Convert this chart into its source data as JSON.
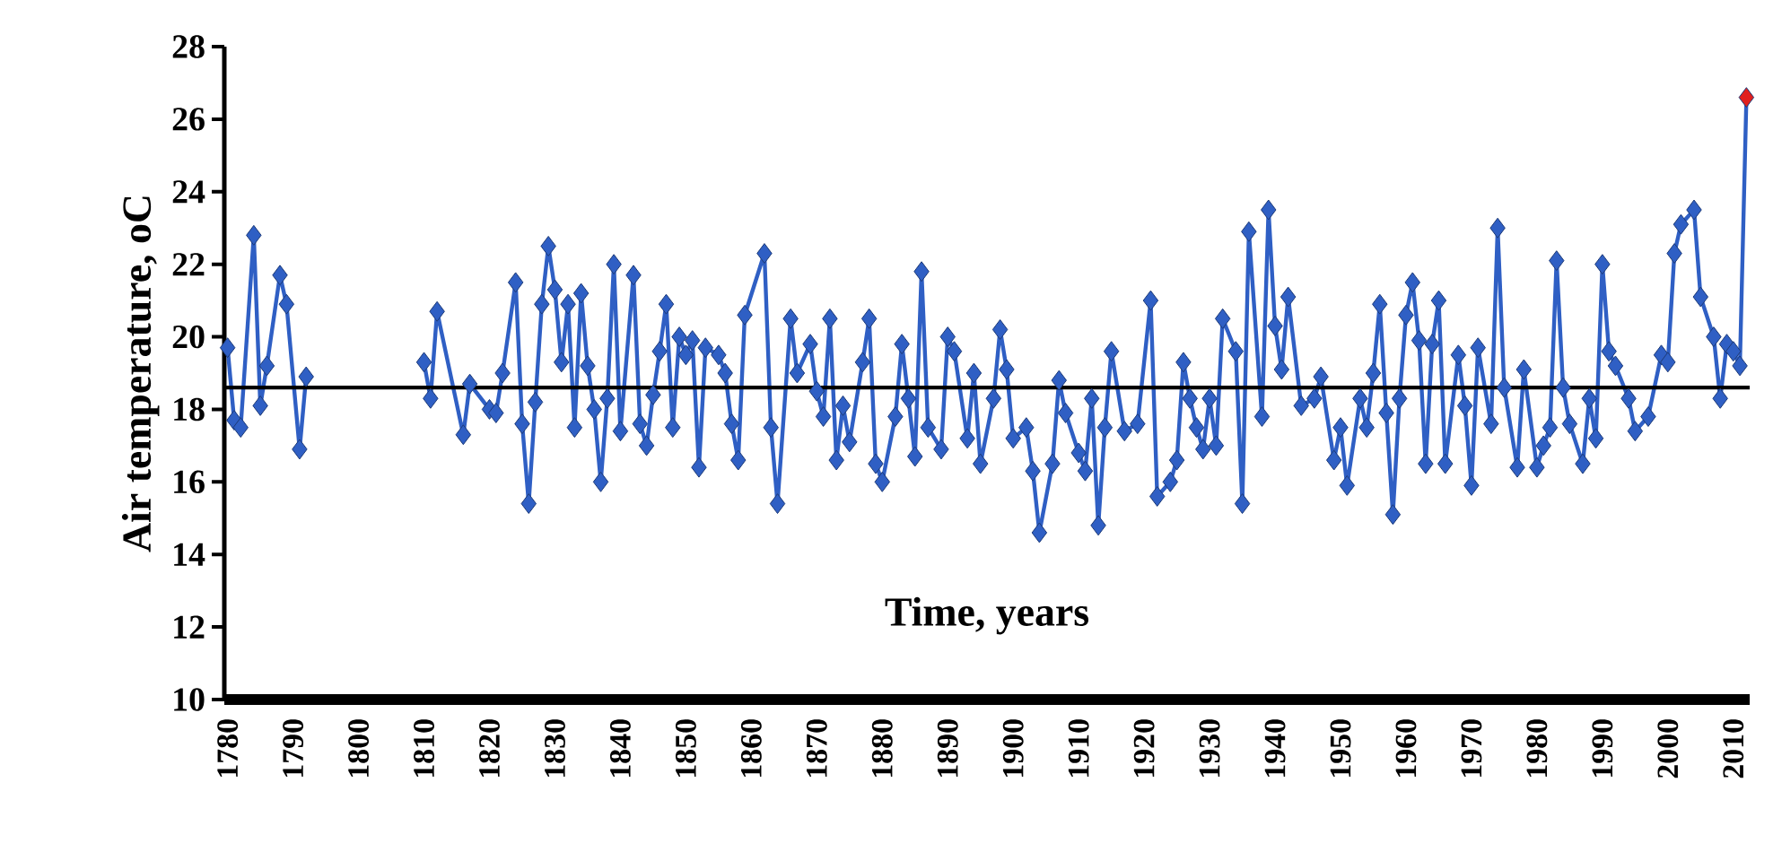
{
  "chart_data": {
    "type": "line",
    "xlabel": "Time, years",
    "ylabel": "Air temperature, oC",
    "xlim": [
      1779.5,
      2012.5
    ],
    "ylim": [
      10,
      28
    ],
    "xticks": [
      1780,
      1790,
      1800,
      1810,
      1820,
      1830,
      1840,
      1850,
      1860,
      1870,
      1880,
      1890,
      1900,
      1910,
      1920,
      1930,
      1940,
      1950,
      1960,
      1970,
      1980,
      1990,
      2000,
      2010
    ],
    "yticks": [
      10,
      12,
      14,
      16,
      18,
      20,
      22,
      24,
      26,
      28
    ],
    "marker": "diamond",
    "line_style": "solid",
    "ref_lines": [
      {
        "axis": "y",
        "value": 18.6,
        "color": "#000000"
      }
    ],
    "series": [
      {
        "color": "#2f5fc4",
        "colors": [
          "#2f5fc4",
          "#2f5fc4",
          "#2f5fc4",
          "#2f5fc4",
          "#2f5fc4",
          "#2f5fc4",
          "#2f5fc4",
          "#2f5fc4",
          "#2f5fc4",
          "#2f5fc4",
          "#2f5fc4",
          "#2f5fc4",
          "#2f5fc4",
          "#2f5fc4",
          "#2f5fc4",
          "#2f5fc4",
          "#2f5fc4",
          "#2f5fc4",
          "#2f5fc4",
          "#2f5fc4",
          "#2f5fc4",
          "#2f5fc4",
          "#2f5fc4",
          "#2f5fc4",
          "#2f5fc4",
          "#2f5fc4",
          "#2f5fc4",
          "#2f5fc4",
          "#2f5fc4",
          "#2f5fc4",
          "#2f5fc4",
          "#2f5fc4",
          "#2f5fc4",
          "#2f5fc4",
          "#2f5fc4",
          "#2f5fc4",
          "#2f5fc4",
          "#2f5fc4",
          "#2f5fc4",
          "#2f5fc4",
          "#2f5fc4",
          "#2f5fc4",
          "#2f5fc4",
          "#2f5fc4",
          "#2f5fc4",
          "#2f5fc4",
          "#2f5fc4",
          "#2f5fc4",
          "#2f5fc4",
          "#2f5fc4",
          "#2f5fc4",
          "#2f5fc4",
          "#2f5fc4",
          "#2f5fc4",
          "#2f5fc4",
          "#2f5fc4",
          "#2f5fc4",
          "#2f5fc4",
          "#2f5fc4",
          "#2f5fc4",
          "#2f5fc4",
          "#2f5fc4",
          "#2f5fc4",
          "#2f5fc4",
          "#2f5fc4",
          "#2f5fc4",
          "#2f5fc4",
          "#2f5fc4",
          "#2f5fc4",
          "#2f5fc4",
          "#2f5fc4",
          "#2f5fc4",
          "#2f5fc4",
          "#2f5fc4",
          "#2f5fc4",
          "#2f5fc4",
          "#2f5fc4",
          "#2f5fc4",
          "#2f5fc4",
          "#2f5fc4",
          "#2f5fc4",
          "#2f5fc4",
          "#2f5fc4",
          "#2f5fc4",
          "#2f5fc4",
          "#2f5fc4",
          "#2f5fc4",
          "#2f5fc4",
          "#2f5fc4",
          "#2f5fc4",
          "#2f5fc4",
          "#2f5fc4",
          "#2f5fc4",
          "#2f5fc4",
          "#2f5fc4",
          "#2f5fc4",
          "#2f5fc4",
          "#2f5fc4",
          "#2f5fc4",
          "#2f5fc4",
          "#2f5fc4",
          "#2f5fc4",
          "#2f5fc4",
          "#2f5fc4",
          "#2f5fc4",
          "#2f5fc4",
          "#2f5fc4",
          "#2f5fc4",
          "#2f5fc4",
          "#2f5fc4",
          "#2f5fc4",
          "#2f5fc4",
          "#2f5fc4",
          "#2f5fc4",
          "#2f5fc4",
          "#2f5fc4",
          "#2f5fc4",
          "#2f5fc4",
          "#2f5fc4",
          "#2f5fc4",
          "#2f5fc4",
          "#2f5fc4",
          "#2f5fc4",
          "#2f5fc4",
          "#2f5fc4",
          "#2f5fc4",
          "#2f5fc4",
          "#2f5fc4",
          "#2f5fc4",
          "#2f5fc4",
          "#2f5fc4",
          "#2f5fc4",
          "#2f5fc4",
          "#2f5fc4",
          "#2f5fc4",
          "#2f5fc4",
          "#2f5fc4",
          "#2f5fc4",
          "#2f5fc4",
          "#2f5fc4",
          "#2f5fc4",
          "#2f5fc4",
          "#2f5fc4",
          "#2f5fc4",
          "#2f5fc4",
          "#2f5fc4",
          "#2f5fc4",
          "#2f5fc4",
          "#2f5fc4",
          "#2f5fc4",
          "#2f5fc4",
          "#2f5fc4",
          "#2f5fc4",
          "#2f5fc4",
          "#2f5fc4",
          "#2f5fc4",
          "#2f5fc4",
          "#2f5fc4",
          "#2f5fc4",
          "#2f5fc4",
          "#2f5fc4",
          "#2f5fc4",
          "#2f5fc4",
          "#2f5fc4",
          "#2f5fc4",
          "#2f5fc4",
          "#2f5fc4",
          "#2f5fc4",
          "#2f5fc4",
          "#2f5fc4",
          "#2f5fc4",
          "#2f5fc4",
          "#2f5fc4",
          "#e0201e"
        ],
        "x": [
          1780,
          1781,
          1782,
          1784,
          1785,
          1786,
          1788,
          1789,
          1791,
          1792,
          1800,
          1810,
          1811,
          1812,
          1816,
          1817,
          1820,
          1821,
          1822,
          1824,
          1825,
          1826,
          1827,
          1828,
          1829,
          1830,
          1831,
          1832,
          1833,
          1834,
          1835,
          1836,
          1837,
          1838,
          1839,
          1840,
          1842,
          1843,
          1844,
          1845,
          1846,
          1847,
          1848,
          1849,
          1850,
          1851,
          1852,
          1853,
          1855,
          1856,
          1857,
          1858,
          1859,
          1862,
          1863,
          1864,
          1866,
          1867,
          1869,
          1870,
          1871,
          1872,
          1873,
          1874,
          1875,
          1877,
          1878,
          1879,
          1880,
          1882,
          1883,
          1884,
          1885,
          1886,
          1887,
          1889,
          1890,
          1891,
          1893,
          1894,
          1895,
          1897,
          1898,
          1899,
          1900,
          1902,
          1903,
          1904,
          1906,
          1907,
          1908,
          1910,
          1911,
          1912,
          1913,
          1914,
          1915,
          1917,
          1919,
          1921,
          1922,
          1924,
          1925,
          1926,
          1927,
          1928,
          1929,
          1930,
          1931,
          1932,
          1934,
          1935,
          1936,
          1938,
          1939,
          1940,
          1941,
          1942,
          1944,
          1946,
          1947,
          1949,
          1950,
          1951,
          1953,
          1954,
          1955,
          1956,
          1957,
          1958,
          1959,
          1960,
          1961,
          1962,
          1963,
          1964,
          1965,
          1966,
          1968,
          1969,
          1970,
          1971,
          1973,
          1974,
          1975,
          1977,
          1978,
          1980,
          1981,
          1982,
          1983,
          1984,
          1985,
          1987,
          1988,
          1989,
          1990,
          1991,
          1992,
          1994,
          1995,
          1997,
          1999,
          2000,
          2001,
          2002,
          2004,
          2005,
          2007,
          2008,
          2009,
          2010,
          2011,
          2012
        ],
        "values": [
          19.7,
          17.7,
          17.5,
          22.8,
          18.1,
          19.2,
          21.7,
          20.9,
          16.9,
          18.9,
          null,
          19.3,
          18.3,
          20.7,
          17.3,
          18.7,
          18.0,
          17.9,
          19.0,
          21.5,
          17.6,
          15.4,
          18.2,
          20.9,
          22.5,
          21.3,
          19.3,
          20.9,
          17.5,
          21.2,
          19.2,
          18.0,
          16.0,
          18.3,
          22.0,
          17.4,
          21.7,
          17.6,
          17.0,
          18.4,
          19.6,
          20.9,
          17.5,
          20.0,
          19.5,
          19.9,
          16.4,
          19.7,
          19.5,
          19.0,
          17.6,
          16.6,
          20.6,
          22.3,
          17.5,
          15.4,
          20.5,
          19.0,
          19.8,
          18.5,
          17.8,
          20.5,
          16.6,
          18.1,
          17.1,
          19.3,
          20.5,
          16.5,
          16.0,
          17.8,
          19.8,
          18.3,
          16.7,
          21.8,
          17.5,
          16.9,
          20.0,
          19.6,
          17.2,
          19.0,
          16.5,
          18.3,
          20.2,
          19.1,
          17.2,
          17.5,
          16.3,
          14.6,
          16.5,
          18.8,
          17.9,
          16.8,
          16.3,
          18.3,
          14.8,
          17.5,
          19.6,
          17.4,
          17.6,
          21.0,
          15.6,
          16.0,
          16.6,
          19.3,
          18.3,
          17.5,
          16.9,
          18.3,
          17.0,
          20.5,
          19.6,
          15.4,
          22.9,
          17.8,
          23.5,
          20.3,
          19.1,
          21.1,
          18.1,
          18.3,
          18.9,
          16.6,
          17.5,
          15.9,
          18.3,
          17.5,
          19.0,
          20.9,
          17.9,
          15.1,
          18.3,
          20.6,
          21.5,
          19.9,
          16.5,
          19.8,
          21.0,
          16.5,
          19.5,
          18.1,
          15.9,
          19.7,
          17.6,
          23.0,
          18.6,
          16.4,
          19.1,
          16.4,
          17.0,
          17.5,
          22.1,
          18.6,
          17.6,
          16.5,
          18.3,
          17.2,
          22.0,
          19.6,
          19.2,
          18.3,
          17.4,
          17.8,
          19.5,
          19.3,
          22.3,
          23.1,
          23.5,
          21.1,
          20.0,
          18.3,
          19.8,
          19.6,
          19.2,
          26.6
        ]
      }
    ]
  }
}
